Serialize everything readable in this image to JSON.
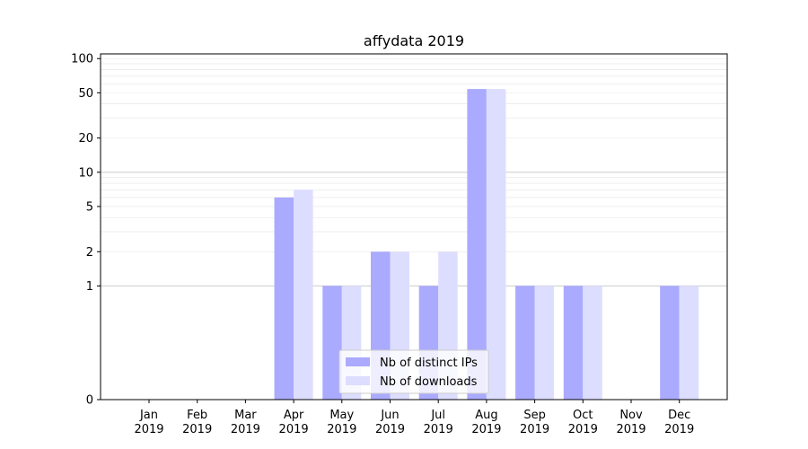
{
  "chart_data": {
    "type": "bar",
    "title": "affydata 2019",
    "categories": [
      "Jan\n2019",
      "Feb\n2019",
      "Mar\n2019",
      "Apr\n2019",
      "May\n2019",
      "Jun\n2019",
      "Jul\n2019",
      "Aug\n2019",
      "Sep\n2019",
      "Oct\n2019",
      "Nov\n2019",
      "Dec\n2019"
    ],
    "series": [
      {
        "name": "Nb of distinct IPs",
        "values": [
          0,
          0,
          0,
          6,
          1,
          2,
          1,
          54,
          1,
          1,
          0,
          1
        ],
        "color": "#aaaaff"
      },
      {
        "name": "Nb of downloads",
        "values": [
          0,
          0,
          0,
          7,
          1,
          2,
          2,
          54,
          1,
          1,
          0,
          1
        ],
        "color": "#ddddff"
      }
    ],
    "y_scale": "symlog",
    "ylim": [
      0,
      110
    ],
    "y_ticks": [
      0,
      1,
      2,
      5,
      10,
      20,
      50,
      100
    ],
    "grid": true,
    "legend_placement": "lower-center",
    "xlabel": "",
    "ylabel": ""
  }
}
